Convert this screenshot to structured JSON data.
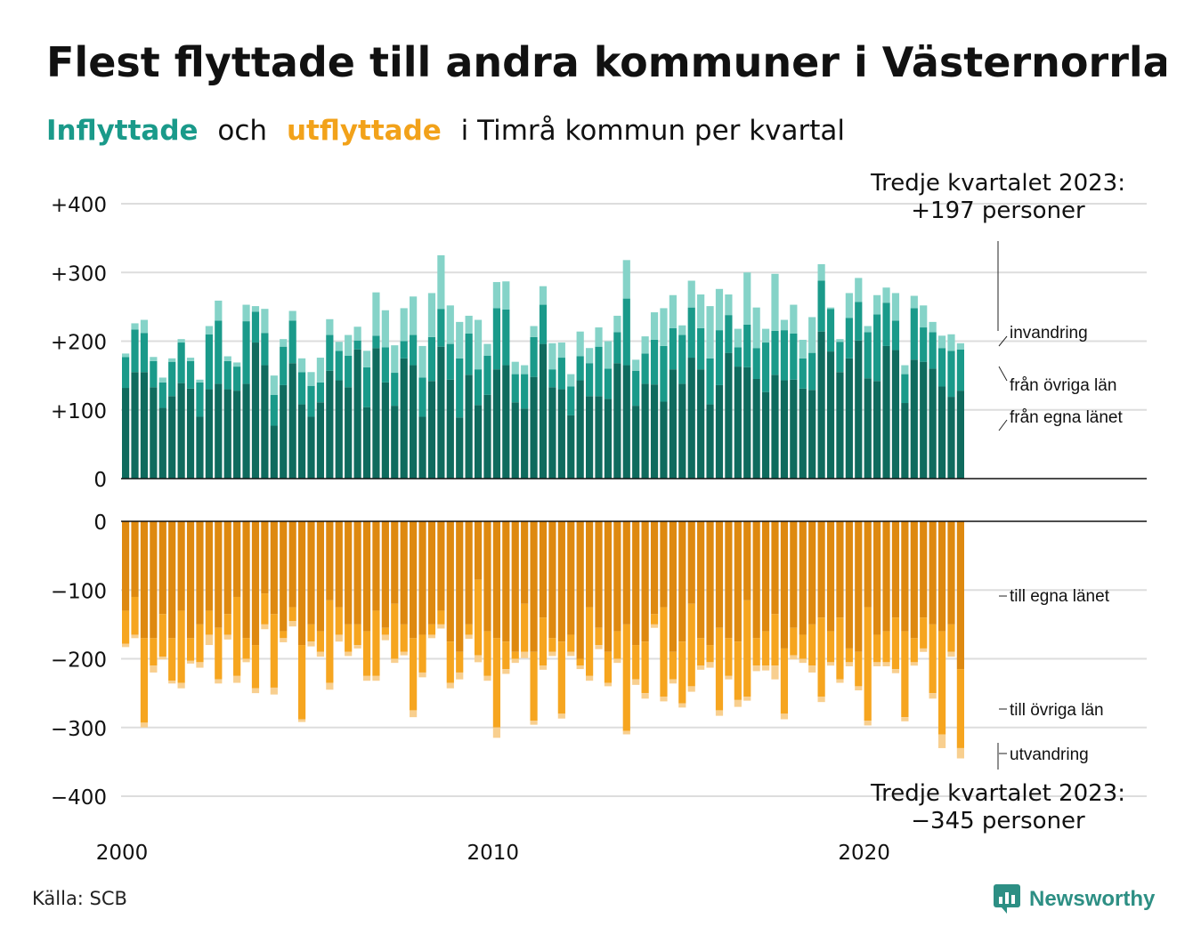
{
  "title": "Flest flyttade till andra kommuner i Västernorrland",
  "subtitle": {
    "in_label": "Inflyttade",
    "conjunction": "och",
    "out_label": "utflyttade",
    "rest": "i Timrå kommun per kvartal"
  },
  "source": "Källa: SCB",
  "brand": "Newsworthy",
  "colors": {
    "in_egna": "#0f6b5e",
    "in_ovriga": "#1a9a8a",
    "in_invandring": "#85d3c8",
    "out_egna": "#de8910",
    "out_ovriga": "#f6a51f",
    "out_utvandring": "#f8cf8f",
    "grid": "#dddddd",
    "brand": "#2d8f84"
  },
  "chart_data": [
    {
      "type": "bar",
      "stacked": true,
      "panel": "Inflyttade",
      "ylim": [
        0,
        400
      ],
      "yticks": [
        "+400",
        "+300",
        "+200",
        "+100",
        "0"
      ],
      "ytick_values": [
        400,
        300,
        200,
        100,
        0
      ],
      "xticks": [
        "2000",
        "2010",
        "2020"
      ],
      "x_start": "2000 Q1",
      "x_end": "2023 Q3",
      "grid": true,
      "series": [
        {
          "name": "från egna länet",
          "values": [
            132,
            155,
            155,
            133,
            103,
            120,
            139,
            131,
            90,
            130,
            138,
            130,
            128,
            138,
            198,
            165,
            77,
            136,
            168,
            108,
            90,
            111,
            157,
            143,
            133,
            188,
            104,
            190,
            140,
            106,
            175,
            165,
            90,
            142,
            192,
            144,
            89,
            151,
            107,
            122,
            159,
            165,
            111,
            102,
            148,
            196,
            133,
            130,
            92,
            143,
            120,
            120,
            116,
            168,
            165,
            106,
            138,
            137,
            112,
            159,
            138,
            176,
            159,
            108,
            136,
            183,
            163,
            162,
            145,
            126,
            151,
            143,
            144,
            131,
            129,
            214,
            185,
            155,
            175,
            201,
            146,
            142,
            193,
            187,
            110,
            173,
            170,
            160,
            134,
            119,
            128
          ]
        },
        {
          "name": "från övriga län",
          "values": [
            45,
            62,
            57,
            38,
            37,
            50,
            59,
            40,
            50,
            80,
            92,
            41,
            35,
            91,
            45,
            47,
            45,
            56,
            62,
            47,
            45,
            29,
            52,
            43,
            46,
            13,
            58,
            18,
            51,
            48,
            25,
            44,
            57,
            64,
            55,
            52,
            86,
            60,
            52,
            57,
            89,
            81,
            41,
            50,
            58,
            57,
            26,
            46,
            42,
            35,
            48,
            72,
            44,
            45,
            97,
            51,
            44,
            65,
            81,
            60,
            71,
            73,
            60,
            67,
            80,
            55,
            28,
            62,
            45,
            72,
            64,
            73,
            67,
            44,
            54,
            74,
            62,
            44,
            59,
            56,
            67,
            97,
            63,
            43,
            42,
            75,
            50,
            53,
            56,
            67,
            60
          ]
        },
        {
          "name": "invandring",
          "values": [
            5,
            9,
            19,
            6,
            7,
            5,
            5,
            5,
            4,
            12,
            29,
            7,
            6,
            24,
            8,
            35,
            28,
            11,
            14,
            20,
            20,
            36,
            23,
            13,
            30,
            20,
            24,
            63,
            54,
            40,
            48,
            56,
            46,
            64,
            78,
            56,
            53,
            26,
            72,
            17,
            38,
            41,
            18,
            13,
            16,
            27,
            38,
            22,
            18,
            36,
            22,
            28,
            40,
            24,
            56,
            16,
            25,
            40,
            55,
            48,
            14,
            39,
            49,
            76,
            60,
            30,
            27,
            76,
            59,
            20,
            83,
            15,
            42,
            27,
            52,
            24,
            2,
            4,
            36,
            35,
            9,
            28,
            22,
            40,
            13,
            18,
            32,
            15,
            18,
            24,
            9
          ]
        }
      ]
    },
    {
      "type": "bar",
      "stacked": true,
      "panel": "Utflyttade",
      "ylim": [
        -400,
        0
      ],
      "yticks": [
        "0",
        "−100",
        "−200",
        "−300",
        "−400"
      ],
      "ytick_values": [
        0,
        -100,
        -200,
        -300,
        -400
      ],
      "xticks": [
        "2000",
        "2010",
        "2020"
      ],
      "x_start": "2000 Q1",
      "x_end": "2023 Q3",
      "grid": true,
      "series": [
        {
          "name": "till egna länet",
          "values": [
            -130,
            -110,
            -170,
            -170,
            -135,
            -170,
            -130,
            -170,
            -150,
            -130,
            -155,
            -135,
            -110,
            -170,
            -180,
            -105,
            -135,
            -160,
            -125,
            -180,
            -150,
            -160,
            -115,
            -125,
            -150,
            -150,
            -160,
            -130,
            -155,
            -120,
            -150,
            -170,
            -165,
            -150,
            -130,
            -175,
            -190,
            -150,
            -85,
            -160,
            -170,
            -175,
            -190,
            -120,
            -190,
            -140,
            -170,
            -175,
            -165,
            -200,
            -125,
            -155,
            -190,
            -160,
            -150,
            -180,
            -175,
            -135,
            -125,
            -190,
            -175,
            -120,
            -170,
            -180,
            -155,
            -170,
            -175,
            -115,
            -170,
            -160,
            -135,
            -185,
            -155,
            -165,
            -150,
            -140,
            -160,
            -140,
            -185,
            -190,
            -125,
            -165,
            -160,
            -140,
            -160,
            -170,
            -140,
            -150,
            -160,
            -150,
            -215
          ]
        },
        {
          "name": "till övriga län",
          "values": [
            -48,
            -55,
            -123,
            -40,
            -62,
            -62,
            -105,
            -33,
            -55,
            -35,
            -75,
            -30,
            -115,
            -30,
            -63,
            -45,
            -107,
            -10,
            -20,
            -108,
            -25,
            -30,
            -120,
            -40,
            -40,
            -30,
            -65,
            -95,
            -10,
            -80,
            -40,
            -105,
            -55,
            -15,
            -20,
            -60,
            -30,
            -15,
            -110,
            -65,
            -130,
            -40,
            -10,
            -70,
            -100,
            -70,
            -20,
            -105,
            -25,
            -10,
            -100,
            -25,
            -45,
            -40,
            -155,
            -50,
            -75,
            -15,
            -130,
            -40,
            -90,
            -120,
            -40,
            -25,
            -120,
            -55,
            -85,
            -140,
            -40,
            -50,
            -75,
            -95,
            -40,
            -35,
            -60,
            -115,
            -45,
            -90,
            -20,
            -50,
            -165,
            -40,
            -45,
            -75,
            -125,
            -35,
            -45,
            -100,
            -150,
            -40,
            -115
          ]
        },
        {
          "name": "utvandring",
          "values": [
            -5,
            -5,
            -7,
            -10,
            -4,
            -4,
            -8,
            -4,
            -8,
            -15,
            -6,
            -7,
            -10,
            -5,
            -7,
            -7,
            -10,
            -6,
            -8,
            -4,
            -7,
            -7,
            -10,
            -10,
            -6,
            -5,
            -7,
            -7,
            -8,
            -6,
            -5,
            -10,
            -7,
            -5,
            -6,
            -8,
            -10,
            -6,
            -10,
            -7,
            -15,
            -7,
            -6,
            -9,
            -6,
            -6,
            -6,
            -7,
            -6,
            -5,
            -7,
            -6,
            -5,
            -6,
            -5,
            -8,
            -8,
            -5,
            -7,
            -6,
            -6,
            -8,
            -6,
            -8,
            -8,
            -5,
            -10,
            -6,
            -8,
            -7,
            -20,
            -8,
            -6,
            -6,
            -10,
            -8,
            -5,
            -5,
            -6,
            -6,
            -7,
            -6,
            -6,
            -6,
            -6,
            -5,
            -5,
            -8,
            -20,
            -7,
            -15
          ]
        }
      ]
    }
  ],
  "annotations": {
    "top_callout_line1": "Tredje kvartalet 2023:",
    "top_callout_line2": "+197 personer",
    "bottom_callout_line1": "Tredje kvartalet 2023:",
    "bottom_callout_line2": "−345 personer",
    "labels_top": [
      "invandring",
      "från övriga län",
      "från egna länet"
    ],
    "labels_bottom": [
      "till egna länet",
      "till övriga län",
      "utvandring"
    ]
  }
}
